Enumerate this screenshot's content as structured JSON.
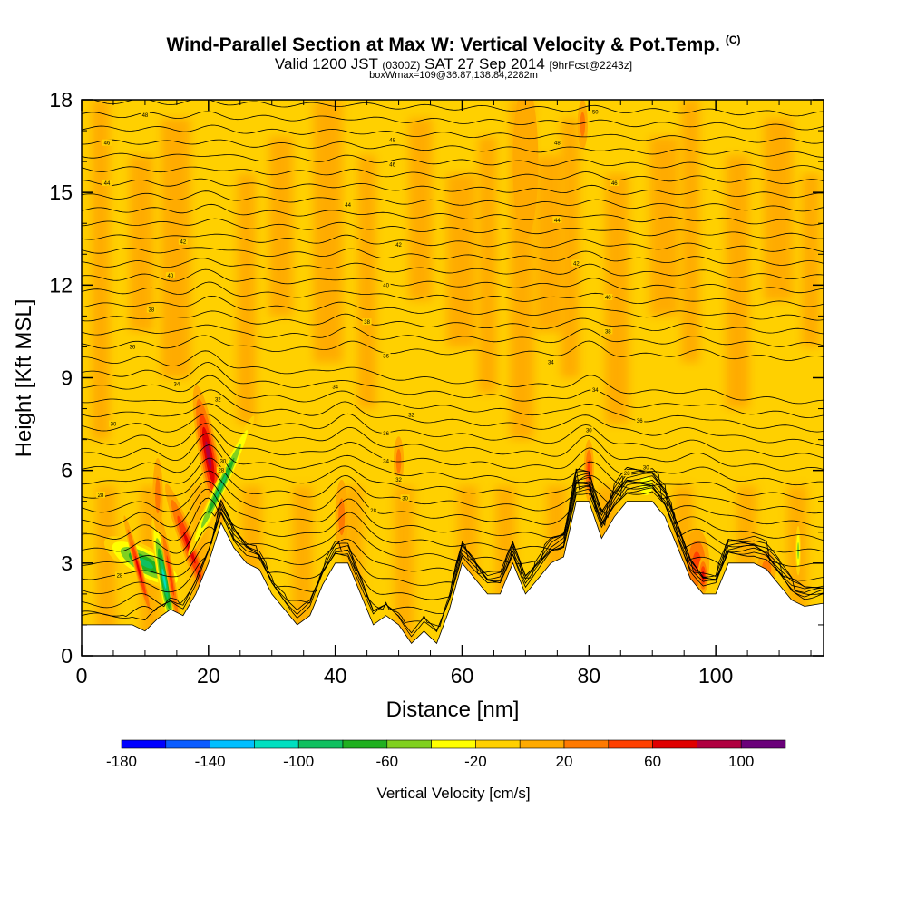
{
  "chart_data": {
    "type": "heatmap",
    "title": "Wind-Parallel Section at Max W: Vertical Velocity & Pot.Temp.",
    "title_mark": "(C)",
    "subtitle_parts": [
      "Valid 1200 JST",
      "(0300Z)",
      "SAT 27 Sep 2014",
      "[9hrFcst@2243z]"
    ],
    "subtitle2": "boxWmax=109@36.87,138.84,2282m",
    "xlabel": "Distance [nm]",
    "ylabel": "Height [Kft MSL]",
    "xlim": [
      0,
      117
    ],
    "ylim": [
      0,
      18
    ],
    "x_ticks": [
      0,
      20,
      40,
      60,
      80,
      100
    ],
    "y_ticks": [
      0,
      3,
      6,
      9,
      12,
      15,
      18
    ],
    "colorbar": {
      "label": "Vertical Velocity [cm/s]",
      "range": [
        -180,
        120
      ],
      "step": 20,
      "tick_values": [
        -180,
        -140,
        -100,
        -60,
        -20,
        20,
        60,
        100
      ],
      "colors": [
        "#0000ff",
        "#0a5cff",
        "#00bfff",
        "#00e0c0",
        "#10c060",
        "#20b020",
        "#80d020",
        "#ffff00",
        "#ffd000",
        "#ffaa00",
        "#ff7a00",
        "#ff4000",
        "#e00000",
        "#b00040",
        "#6a007a"
      ]
    },
    "terrain": {
      "x": [
        0,
        4,
        8,
        10,
        12,
        14,
        16,
        18,
        20,
        22,
        24,
        26,
        28,
        30,
        32,
        34,
        36,
        38,
        40,
        42,
        44,
        46,
        48,
        50,
        52,
        54,
        56,
        58,
        60,
        62,
        64,
        66,
        68,
        70,
        72,
        74,
        76,
        78,
        80,
        82,
        84,
        86,
        88,
        90,
        92,
        94,
        96,
        98,
        100,
        102,
        104,
        106,
        108,
        110,
        112,
        114,
        117
      ],
      "height_kft": [
        1.0,
        1.0,
        1.0,
        0.8,
        1.2,
        1.5,
        1.3,
        2.0,
        3.0,
        4.3,
        3.5,
        3.0,
        2.8,
        2.0,
        1.5,
        1.0,
        1.3,
        2.3,
        3.0,
        3.0,
        2.0,
        1.0,
        1.3,
        1.0,
        0.4,
        0.8,
        0.4,
        1.5,
        3.0,
        2.5,
        2.0,
        2.0,
        3.0,
        2.0,
        2.5,
        3.0,
        3.2,
        5.0,
        5.0,
        3.8,
        4.5,
        5.0,
        5.0,
        5.0,
        4.5,
        3.5,
        2.5,
        2.0,
        2.0,
        3.0,
        3.0,
        3.0,
        2.8,
        2.3,
        1.8,
        1.6,
        1.7
      ]
    },
    "theta_contour_labels": [
      {
        "x": 3,
        "y": 5.2,
        "text": "28"
      },
      {
        "x": 5,
        "y": 7.5,
        "text": "30"
      },
      {
        "x": 15,
        "y": 8.8,
        "text": "34"
      },
      {
        "x": 8,
        "y": 10.0,
        "text": "36"
      },
      {
        "x": 11,
        "y": 11.2,
        "text": "38"
      },
      {
        "x": 14,
        "y": 12.3,
        "text": "40"
      },
      {
        "x": 16,
        "y": 13.4,
        "text": "42"
      },
      {
        "x": 4,
        "y": 15.3,
        "text": "44"
      },
      {
        "x": 4,
        "y": 16.6,
        "text": "46"
      },
      {
        "x": 10,
        "y": 17.5,
        "text": "48"
      },
      {
        "x": 6,
        "y": 2.6,
        "text": "28"
      },
      {
        "x": 22,
        "y": 6.0,
        "text": "28"
      },
      {
        "x": 22.3,
        "y": 6.3,
        "text": "30"
      },
      {
        "x": 21.5,
        "y": 8.3,
        "text": "32"
      },
      {
        "x": 46,
        "y": 4.7,
        "text": "28"
      },
      {
        "x": 51,
        "y": 5.1,
        "text": "30"
      },
      {
        "x": 50,
        "y": 5.7,
        "text": "32"
      },
      {
        "x": 48,
        "y": 6.3,
        "text": "34"
      },
      {
        "x": 48,
        "y": 7.2,
        "text": "36"
      },
      {
        "x": 52,
        "y": 7.8,
        "text": "32"
      },
      {
        "x": 40,
        "y": 8.7,
        "text": "34"
      },
      {
        "x": 48,
        "y": 9.7,
        "text": "36"
      },
      {
        "x": 45,
        "y": 10.8,
        "text": "38"
      },
      {
        "x": 48,
        "y": 12.0,
        "text": "40"
      },
      {
        "x": 50,
        "y": 13.3,
        "text": "42"
      },
      {
        "x": 42,
        "y": 14.6,
        "text": "44"
      },
      {
        "x": 49,
        "y": 15.9,
        "text": "46"
      },
      {
        "x": 49,
        "y": 16.7,
        "text": "48"
      },
      {
        "x": 74,
        "y": 9.5,
        "text": "34"
      },
      {
        "x": 80,
        "y": 7.3,
        "text": "30"
      },
      {
        "x": 81,
        "y": 8.6,
        "text": "34"
      },
      {
        "x": 88,
        "y": 7.6,
        "text": "36"
      },
      {
        "x": 83,
        "y": 10.5,
        "text": "38"
      },
      {
        "x": 83,
        "y": 11.6,
        "text": "40"
      },
      {
        "x": 78,
        "y": 12.7,
        "text": "42"
      },
      {
        "x": 75,
        "y": 14.1,
        "text": "44"
      },
      {
        "x": 84,
        "y": 15.3,
        "text": "46"
      },
      {
        "x": 75,
        "y": 16.6,
        "text": "48"
      },
      {
        "x": 81,
        "y": 17.6,
        "text": "50"
      },
      {
        "x": 86,
        "y": 5.9,
        "text": "28"
      },
      {
        "x": 89,
        "y": 6.1,
        "text": "30"
      }
    ],
    "velocity_features": [
      {
        "x": 10,
        "y": 3.0,
        "rx": 2.5,
        "ry": 1.5,
        "rot": -60,
        "w": -90
      },
      {
        "x": 13,
        "y": 2.5,
        "rx": 1.0,
        "ry": 2.0,
        "rot": -10,
        "w": -110
      },
      {
        "x": 9,
        "y": 2.8,
        "rx": 0.6,
        "ry": 1.8,
        "rot": -15,
        "w": 70
      },
      {
        "x": 14,
        "y": 2.6,
        "rx": 0.6,
        "ry": 2.0,
        "rot": -10,
        "w": 60
      },
      {
        "x": 17,
        "y": 3.5,
        "rx": 1.2,
        "ry": 2.2,
        "rot": -20,
        "w": 80
      },
      {
        "x": 20,
        "y": 6.5,
        "rx": 1.5,
        "ry": 2.3,
        "rot": -10,
        "w": 109
      },
      {
        "x": 22,
        "y": 5.5,
        "rx": 1.0,
        "ry": 2.5,
        "rot": 25,
        "w": -100
      },
      {
        "x": 12,
        "y": 5.2,
        "rx": 0.8,
        "ry": 1.2,
        "rot": 0,
        "w": 40
      },
      {
        "x": 41,
        "y": 4.5,
        "rx": 1.0,
        "ry": 1.2,
        "rot": 0,
        "w": 40
      },
      {
        "x": 80,
        "y": 6.0,
        "rx": 0.8,
        "ry": 1.0,
        "rot": 0,
        "w": 50
      },
      {
        "x": 89,
        "y": 5.5,
        "rx": 2.0,
        "ry": 0.6,
        "rot": 0,
        "w": -40
      },
      {
        "x": 97,
        "y": 3.0,
        "rx": 2.0,
        "ry": 1.1,
        "rot": 0,
        "w": 50
      },
      {
        "x": 98,
        "y": 2.6,
        "rx": 0.8,
        "ry": 0.6,
        "rot": 0,
        "w": 70
      },
      {
        "x": 113,
        "y": 3.4,
        "rx": 0.4,
        "ry": 0.8,
        "rot": 0,
        "w": -50
      },
      {
        "x": 70,
        "y": 16.0,
        "rx": 2.0,
        "ry": 2.5,
        "rot": 0,
        "w": 20
      },
      {
        "x": 79,
        "y": 17.2,
        "rx": 0.8,
        "ry": 0.8,
        "rot": 0,
        "w": 40
      },
      {
        "x": 50,
        "y": 6.3,
        "rx": 0.8,
        "ry": 0.8,
        "rot": 0,
        "w": 40
      },
      {
        "x": 108,
        "y": 2.8,
        "rx": 1.5,
        "ry": 0.6,
        "rot": 0,
        "w": 30
      }
    ]
  }
}
